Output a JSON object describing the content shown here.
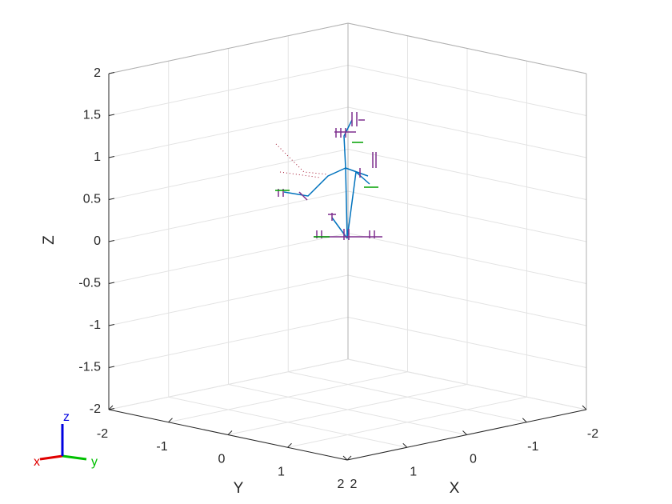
{
  "chart_data": {
    "type": "axes3d",
    "xlabel": "X",
    "ylabel": "Y",
    "zlabel": "Z",
    "xlim": [
      -2,
      2
    ],
    "ylim": [
      -2,
      2
    ],
    "zlim": [
      -2,
      2
    ],
    "xticks": [
      -2,
      -1,
      0,
      1,
      2
    ],
    "yticks": [
      -2,
      -1,
      0,
      1,
      2
    ],
    "zticks": [
      -2,
      -1.5,
      -1,
      -0.5,
      0,
      0.5,
      1,
      1.5,
      2
    ],
    "grid": true,
    "triad": {
      "x": "x",
      "y": "y",
      "z": "z"
    }
  }
}
